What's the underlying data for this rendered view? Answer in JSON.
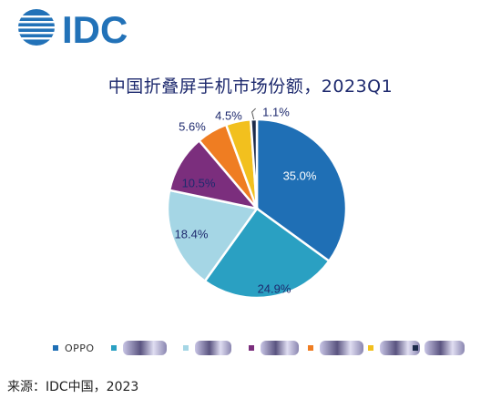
{
  "logo_text": "IDC",
  "chart_data": {
    "type": "pie",
    "title": "中国折叠屏手机市场份额，2023Q1",
    "start_angle_deg": 0,
    "direction": "clockwise",
    "slices": [
      {
        "name": "OPPO",
        "value": 35.0,
        "label": "35.0%",
        "color": "#1f6fb5",
        "label_color": "#ffffff"
      },
      {
        "name": "",
        "value": 24.9,
        "label": "24.9%",
        "color": "#2aa0c2",
        "label_color": "#1e2a6e"
      },
      {
        "name": "",
        "value": 18.4,
        "label": "18.4%",
        "color": "#a5d6e5",
        "label_color": "#1e2a6e"
      },
      {
        "name": "",
        "value": 10.5,
        "label": "10.5%",
        "color": "#7b2e7d",
        "label_color": "#1e2a6e"
      },
      {
        "name": "",
        "value": 5.6,
        "label": "5.6%",
        "color": "#ef7d22",
        "label_color": "#1e2a6e"
      },
      {
        "name": "",
        "value": 4.5,
        "label": "4.5%",
        "color": "#f2c01e",
        "label_color": "#1e2a6e"
      },
      {
        "name": "",
        "value": 1.1,
        "label": "1.1%",
        "color": "#1b2a4a",
        "label_color": "#1e2a6e"
      }
    ],
    "legend_position": "bottom"
  },
  "source": "来源：IDC中国，2023",
  "colors": {
    "title": "#1e2a6e",
    "logo": "#2272b8"
  }
}
